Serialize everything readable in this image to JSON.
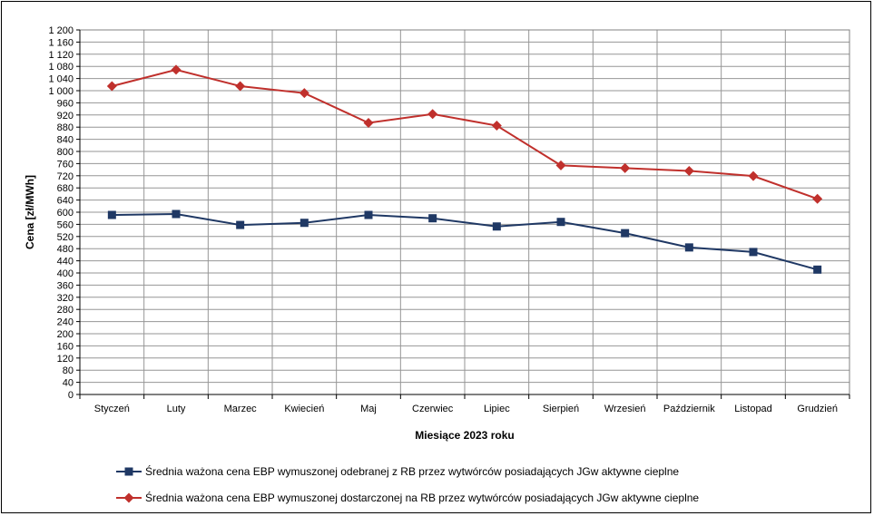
{
  "chart_data": {
    "type": "line",
    "title": "",
    "xlabel": "Miesiące 2023  roku",
    "ylabel": "Cena [zł/MWh]",
    "ylim": [
      0,
      1200
    ],
    "ytick_step": 40,
    "grid": true,
    "legend_position": "bottom",
    "categories": [
      "Styczeń",
      "Luty",
      "Marzec",
      "Kwiecień",
      "Maj",
      "Czerwiec",
      "Lipiec",
      "Sierpień",
      "Wrzesień",
      "Październik",
      "Listopad",
      "Grudzień"
    ],
    "series": [
      {
        "name": "Średnia ważona cena EBP wymuszonej odebranej z RB przez wytwórców posiadających JGw aktywne cieplne",
        "color": "#1f3864",
        "marker": "square",
        "values": [
          591,
          594,
          558,
          565,
          591,
          580,
          553,
          568,
          531,
          484,
          469,
          411
        ]
      },
      {
        "name": "Średnia ważona cena EBP wymuszonej dostarczonej na RB przez wytwórców posiadających JGw aktywne cieplne",
        "color": "#c0302c",
        "marker": "diamond",
        "values": [
          1015,
          1069,
          1015,
          992,
          894,
          923,
          885,
          754,
          745,
          736,
          719,
          644
        ]
      }
    ]
  }
}
